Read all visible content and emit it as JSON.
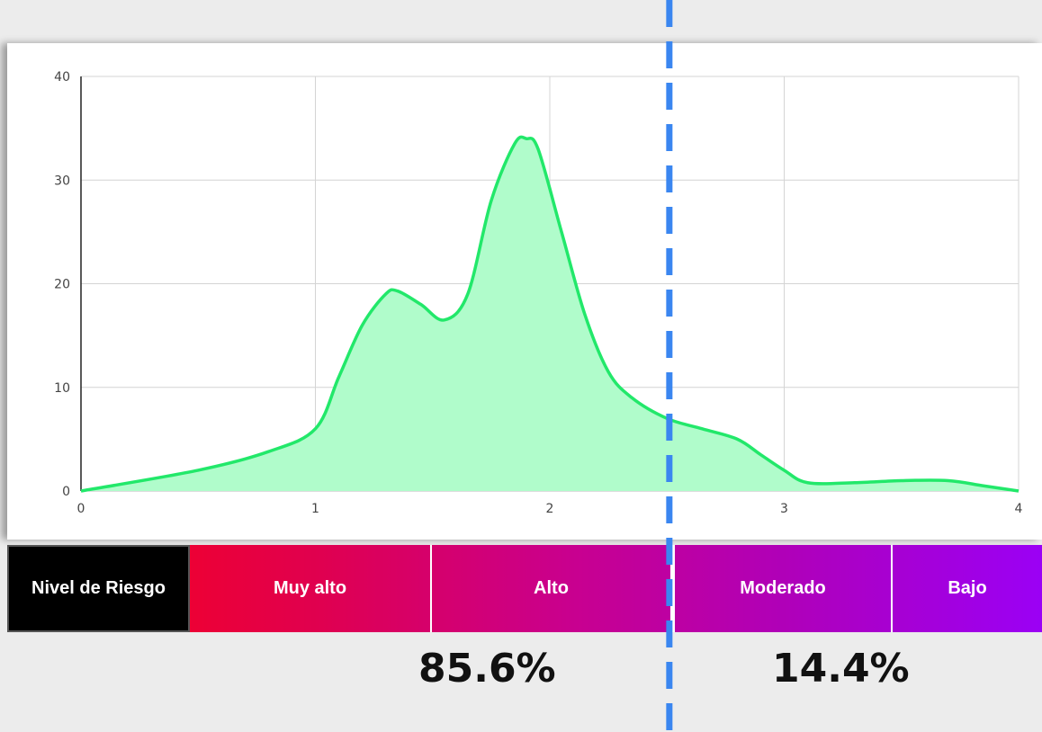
{
  "chart_data": {
    "type": "area",
    "x": [
      0,
      0.5,
      0.8,
      1,
      1.1,
      1.2,
      1.3,
      1.35,
      1.45,
      1.55,
      1.65,
      1.75,
      1.85,
      1.9,
      1.95,
      2.05,
      2.15,
      2.25,
      2.35,
      2.5,
      2.65,
      2.8,
      2.9,
      3,
      3.1,
      3.3,
      3.5,
      3.7,
      3.85,
      4
    ],
    "values": [
      0,
      2,
      3.8,
      6,
      11,
      16,
      19,
      19.3,
      18,
      16.5,
      19,
      28,
      33.5,
      34,
      33,
      25,
      17,
      11.5,
      9,
      7,
      6,
      5,
      3.5,
      2,
      0.8,
      0.8,
      1,
      1,
      0.5,
      0
    ],
    "color": "#22e86a",
    "fill": "#b0fccb",
    "xlim": [
      0,
      4
    ],
    "xticks": [
      0,
      1,
      2,
      3,
      4
    ],
    "ylim": [
      0,
      40
    ],
    "yticks": [
      0,
      10,
      20,
      30,
      40
    ],
    "grid": true,
    "threshold": 2.51,
    "threshold_color": "#3a86f0"
  },
  "risk_levels": {
    "header": "Nivel de Riesgo",
    "levels": [
      "Muy alto",
      "Alto",
      "Moderado",
      "Bajo"
    ]
  },
  "shares": [
    {
      "value": 85.6,
      "label": "85.6%"
    },
    {
      "value": 14.4,
      "label": "14.4%"
    }
  ]
}
